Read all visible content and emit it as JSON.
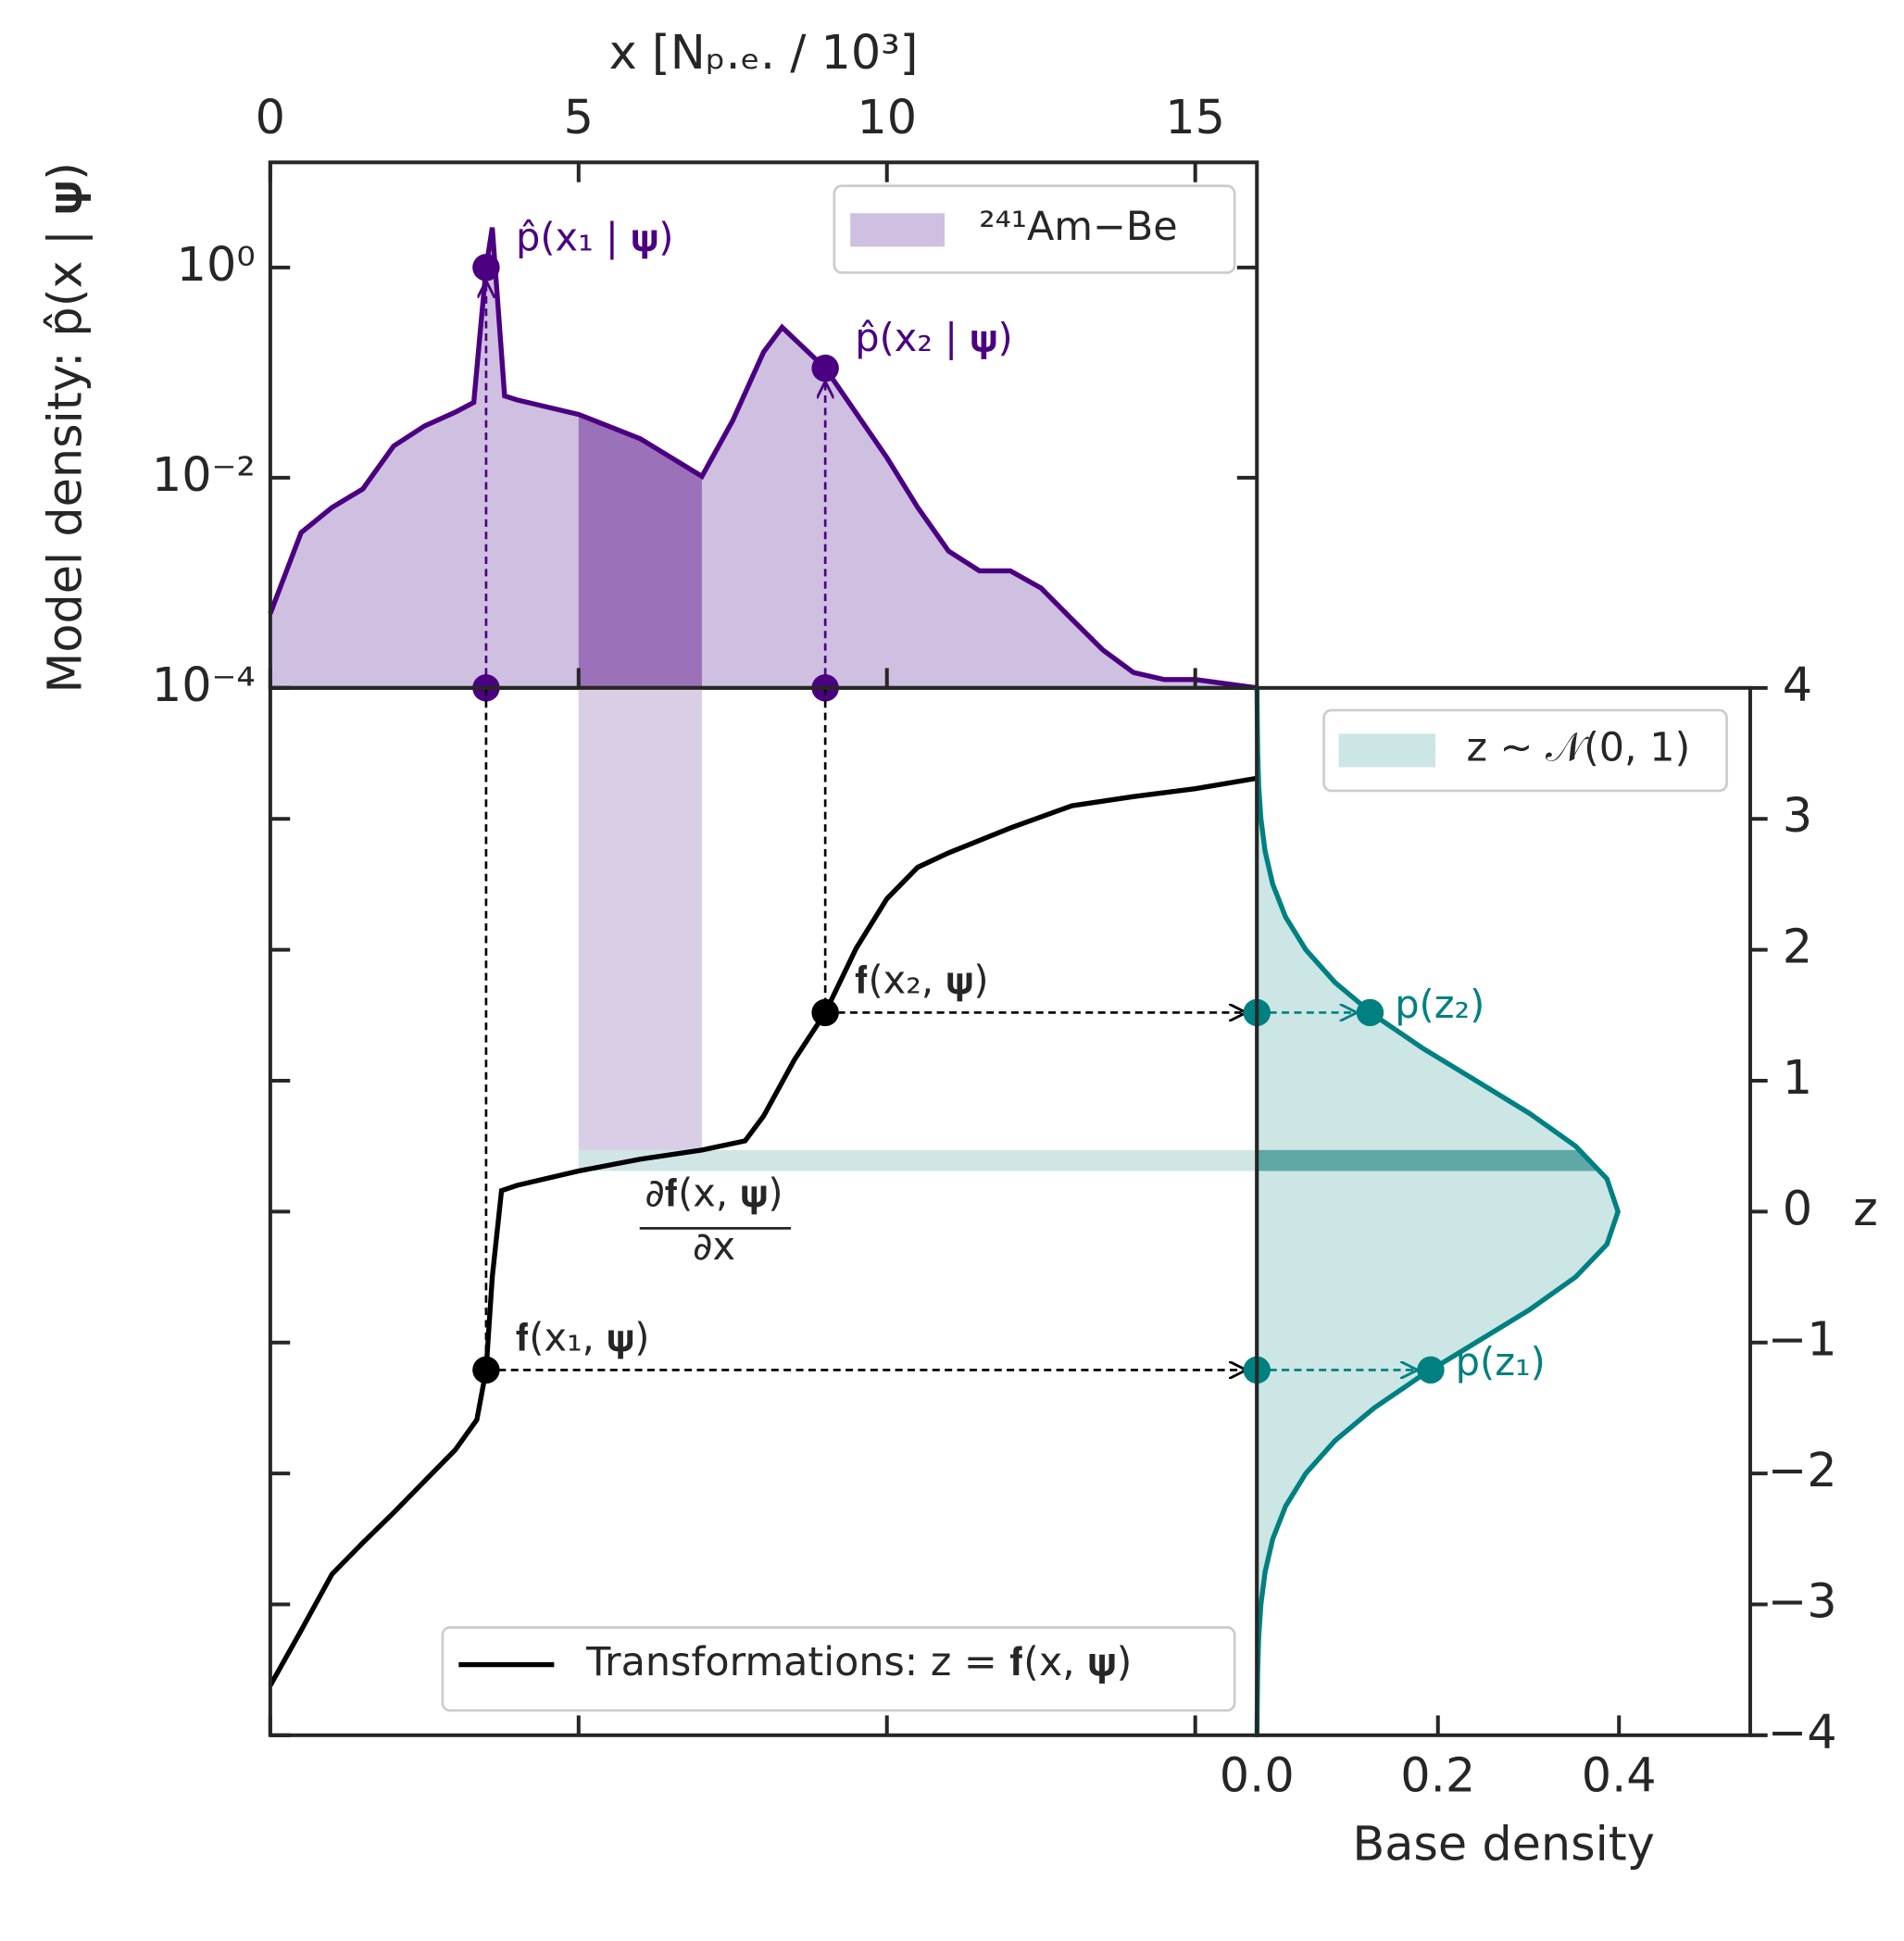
{
  "chart_data": [
    {
      "type": "area",
      "xlabel": "x [Nₚ.ₑ. / 10³]",
      "ylabel": "Model density: p̂(x | 𝛙)",
      "x": [
        0,
        0.5,
        1,
        1.5,
        2,
        2.5,
        3,
        3.3,
        3.5,
        3.6,
        3.8,
        4,
        5,
        6,
        7,
        7.5,
        8,
        8.3,
        9,
        10,
        10.5,
        11,
        11.5,
        12,
        12.5,
        13,
        13.5,
        14,
        14.5,
        15,
        16
      ],
      "series": [
        {
          "name": "²⁴¹Am−Be",
          "color": "#4b0082",
          "fill": "#cfbfe0",
          "values": [
            0.00051,
            0.003,
            0.0052,
            0.0078,
            0.02,
            0.031,
            0.042,
            0.052,
            1.0,
            2.4,
            0.06,
            0.055,
            0.04,
            0.0235,
            0.0103,
            0.035,
            0.157,
            0.27,
            0.11,
            0.0155,
            0.0052,
            0.002,
            0.0013,
            0.0013,
            0.00089,
            0.00045,
            0.00023,
            0.00014,
            0.00012,
            0.00012,
            0.0001
          ]
        }
      ],
      "highlight_x": [
        5,
        7
      ],
      "highlight_color": "#9b72b9",
      "points": [
        {
          "x": 3.5,
          "y": 1.0,
          "label": "p̂(x₁ | 𝛙)"
        },
        {
          "x": 9,
          "y": 0.11,
          "label": "p̂(x₂ | 𝛙)"
        }
      ],
      "xlim": [
        0,
        16
      ],
      "xticks": [
        0,
        5,
        10,
        15
      ],
      "ylog": true,
      "ylim": [
        0.0001,
        10
      ],
      "yticks": [
        {
          "value": 1,
          "label": "10⁰"
        },
        {
          "value": 0.01,
          "label": "10⁻²"
        },
        {
          "value": 0.0001,
          "label": "10⁻⁴"
        }
      ],
      "legend": "upper right"
    },
    {
      "type": "line",
      "x": [
        0,
        0.5,
        1,
        1.5,
        2,
        2.5,
        3,
        3.35,
        3.5,
        3.6,
        3.75,
        4,
        5,
        6,
        7,
        7.7,
        8,
        8.5,
        9,
        9.5,
        10,
        10.5,
        11,
        12,
        13,
        14,
        15,
        16
      ],
      "series": [
        {
          "name": "Transformations: z = 𝐟(x, 𝛙)",
          "color": "#000000",
          "values": [
            -3.62,
            -3.2,
            -2.77,
            -2.53,
            -2.3,
            -2.06,
            -1.82,
            -1.59,
            -1.21,
            -0.5,
            0.16,
            0.2,
            0.31,
            0.4,
            0.47,
            0.54,
            0.73,
            1.16,
            1.52,
            2.01,
            2.39,
            2.63,
            2.74,
            2.93,
            3.1,
            3.17,
            3.23,
            3.31
          ]
        }
      ],
      "points": [
        {
          "x": 3.5,
          "y": -1.21,
          "label": "𝐟(x₁, 𝛙)"
        },
        {
          "x": 9,
          "y": 1.52,
          "label": "𝐟(x₂, 𝛙)"
        }
      ],
      "highlight_x": [
        5,
        7
      ],
      "highlight_z": [
        0.31,
        0.47
      ],
      "derivative": {
        "numerator": "∂𝐟(x, 𝛙)",
        "denominator": "∂x"
      },
      "legend": "lower right"
    },
    {
      "type": "area_h",
      "xlabel": "Base density",
      "ylabel": "z",
      "z": [
        -4,
        -3.75,
        -3.5,
        -3.25,
        -3,
        -2.75,
        -2.5,
        -2.25,
        -2,
        -1.75,
        -1.5,
        -1.25,
        -1,
        -0.75,
        -0.5,
        -0.25,
        0,
        0.25,
        0.5,
        0.75,
        1,
        1.25,
        1.5,
        1.75,
        2,
        2.25,
        2.5,
        2.75,
        3,
        3.25,
        3.5,
        3.75,
        4
      ],
      "series": [
        {
          "name": "z ∼ 𝒩(0, 1)",
          "color": "#008080",
          "fill": "#cce6e5",
          "values": [
            0.0001,
            0.0004,
            0.0009,
            0.002,
            0.0044,
            0.0091,
            0.0175,
            0.0317,
            0.054,
            0.0863,
            0.1295,
            0.1826,
            0.242,
            0.3011,
            0.3521,
            0.3867,
            0.3989,
            0.3867,
            0.3521,
            0.3011,
            0.242,
            0.1826,
            0.1295,
            0.0863,
            0.054,
            0.0317,
            0.0175,
            0.0091,
            0.0044,
            0.002,
            0.0009,
            0.0004,
            0.0001
          ]
        }
      ],
      "band_z": [
        0.31,
        0.47
      ],
      "band_color": "#5fa8a6",
      "points": [
        {
          "z": -1.21,
          "value": 0.192,
          "label": "p(z₁)"
        },
        {
          "z": 1.52,
          "value": 0.125,
          "label": "p(z₂)"
        }
      ],
      "xlim": [
        0,
        0.545
      ],
      "xticks": [
        {
          "value": 0,
          "label": "0.0"
        },
        {
          "value": 0.2,
          "label": "0.2"
        },
        {
          "value": 0.4,
          "label": "0.4"
        }
      ],
      "ylim": [
        -4,
        4
      ],
      "yticks": [
        {
          "value": -4,
          "label": "−4"
        },
        {
          "value": -3,
          "label": "−3"
        },
        {
          "value": -2,
          "label": "−2"
        },
        {
          "value": -1,
          "label": "−1"
        },
        0,
        1,
        2,
        3,
        4
      ],
      "legend": "upper right"
    }
  ]
}
